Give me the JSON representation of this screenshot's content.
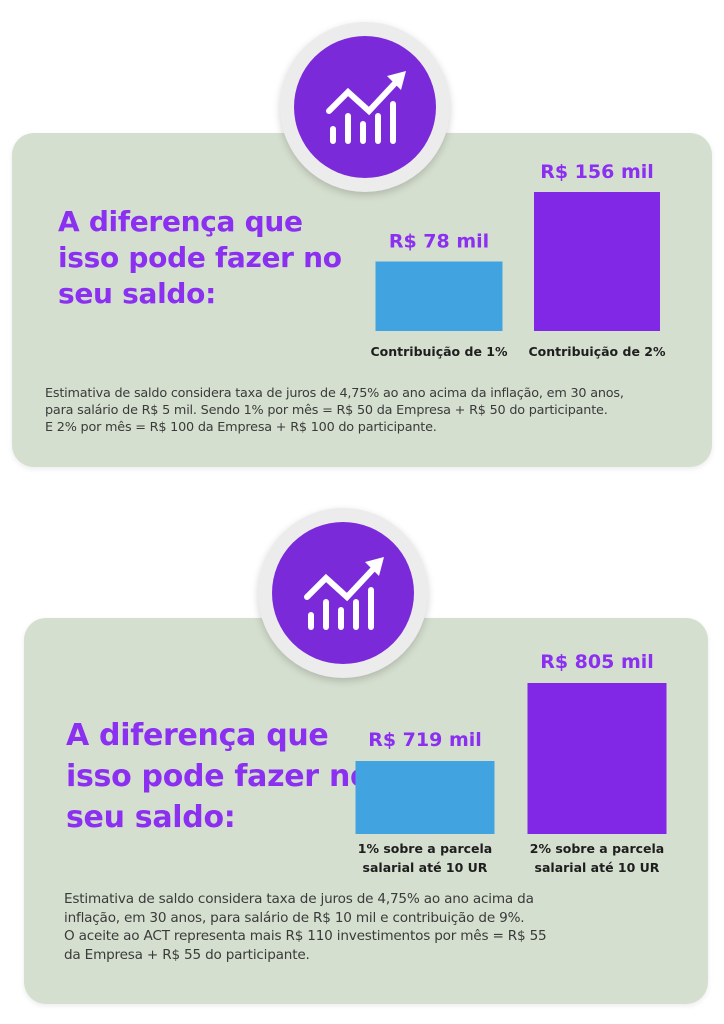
{
  "panels": [
    {
      "headline": [
        "A diferença que",
        "isso pode fazer no",
        "seu saldo:"
      ],
      "chart_data": {
        "type": "bar",
        "categories": [
          [
            "Contribuição de 1%"
          ],
          [
            "Contribuição de 2%"
          ]
        ],
        "value_labels": [
          "R$ 78 mil",
          "R$ 156 mil"
        ],
        "values": [
          78,
          156
        ],
        "unit": "R$ mil",
        "colors": [
          "#41a4e1",
          "#8128e6"
        ]
      },
      "note": [
        "Estimativa de saldo considera taxa de juros de 4,75% ao ano acima da inflação, em 30 anos,",
        "para salário de R$ 5 mil. Sendo 1% por mês = R$ 50 da Empresa + R$ 50 do participante.",
        "E 2% por mês = R$ 100 da Empresa + R$ 100 do participante."
      ]
    },
    {
      "headline": [
        "A diferença que",
        "isso pode fazer no",
        "seu saldo:"
      ],
      "chart_data": {
        "type": "bar",
        "categories": [
          [
            "1% sobre a parcela",
            "salarial até 10 UR"
          ],
          [
            "2% sobre a parcela",
            "salarial até 10 UR"
          ]
        ],
        "value_labels": [
          "R$ 719 mil",
          "R$ 805 mil"
        ],
        "values": [
          719,
          805
        ],
        "unit": "R$ mil",
        "colors": [
          "#41a4e1",
          "#8128e6"
        ]
      },
      "note": [
        "Estimativa de saldo considera taxa de juros de 4,75% ao ano acima da",
        "inflação, em 30 anos, para salário de R$ 10 mil e contribuição de 9%.",
        "O aceite ao ACT representa mais R$ 110 investimentos por mês = R$ 55",
        "da Empresa + R$ 55 do participante."
      ]
    }
  ],
  "badge_icon": "growth-chart-icon",
  "colors": {
    "card_bg": "#d5dfcf",
    "accent_purple": "#8b2ff0",
    "badge_purple": "#7b2ad9",
    "bar_blue": "#41a4e1",
    "bar_purple": "#8128e6"
  }
}
